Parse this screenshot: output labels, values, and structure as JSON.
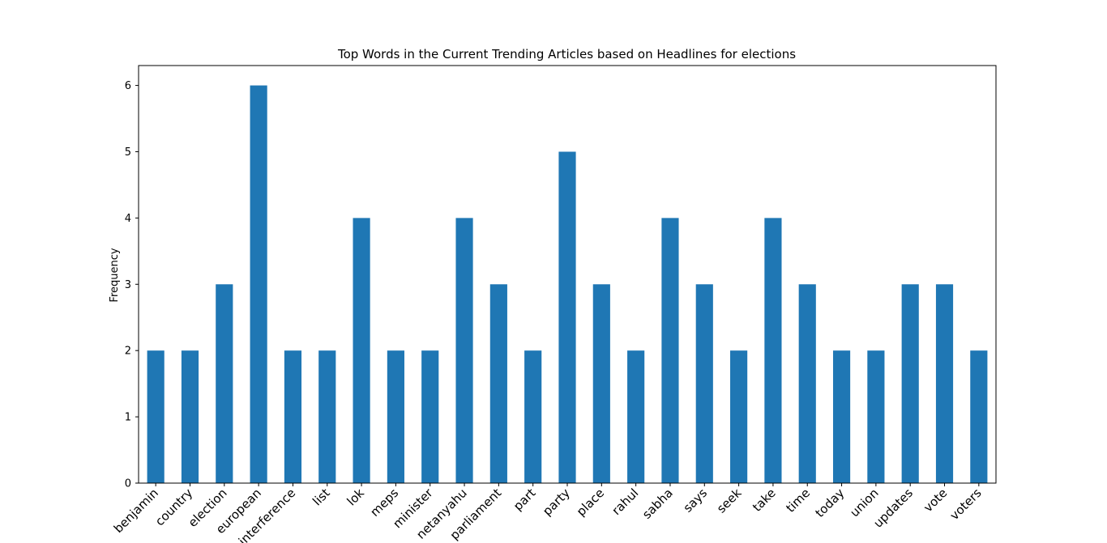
{
  "chart_data": {
    "type": "bar",
    "title": "Top Words in the Current Trending Articles based on Headlines for elections",
    "xlabel": "",
    "ylabel": "Frequency",
    "categories": [
      "benjamin",
      "country",
      "election",
      "european",
      "interference",
      "list",
      "lok",
      "meps",
      "minister",
      "netanyahu",
      "parliament",
      "part",
      "party",
      "place",
      "rahul",
      "sabha",
      "says",
      "seek",
      "take",
      "time",
      "today",
      "union",
      "updates",
      "vote",
      "voters"
    ],
    "values": [
      2,
      2,
      3,
      6,
      2,
      2,
      4,
      2,
      2,
      4,
      3,
      2,
      5,
      3,
      2,
      4,
      3,
      2,
      4,
      3,
      2,
      2,
      3,
      3,
      2
    ],
    "ylim": [
      0,
      6.3
    ],
    "yticks": [
      0,
      1,
      2,
      3,
      4,
      5,
      6
    ],
    "bar_color": "#1f77b4",
    "grid": false,
    "legend": "none"
  }
}
